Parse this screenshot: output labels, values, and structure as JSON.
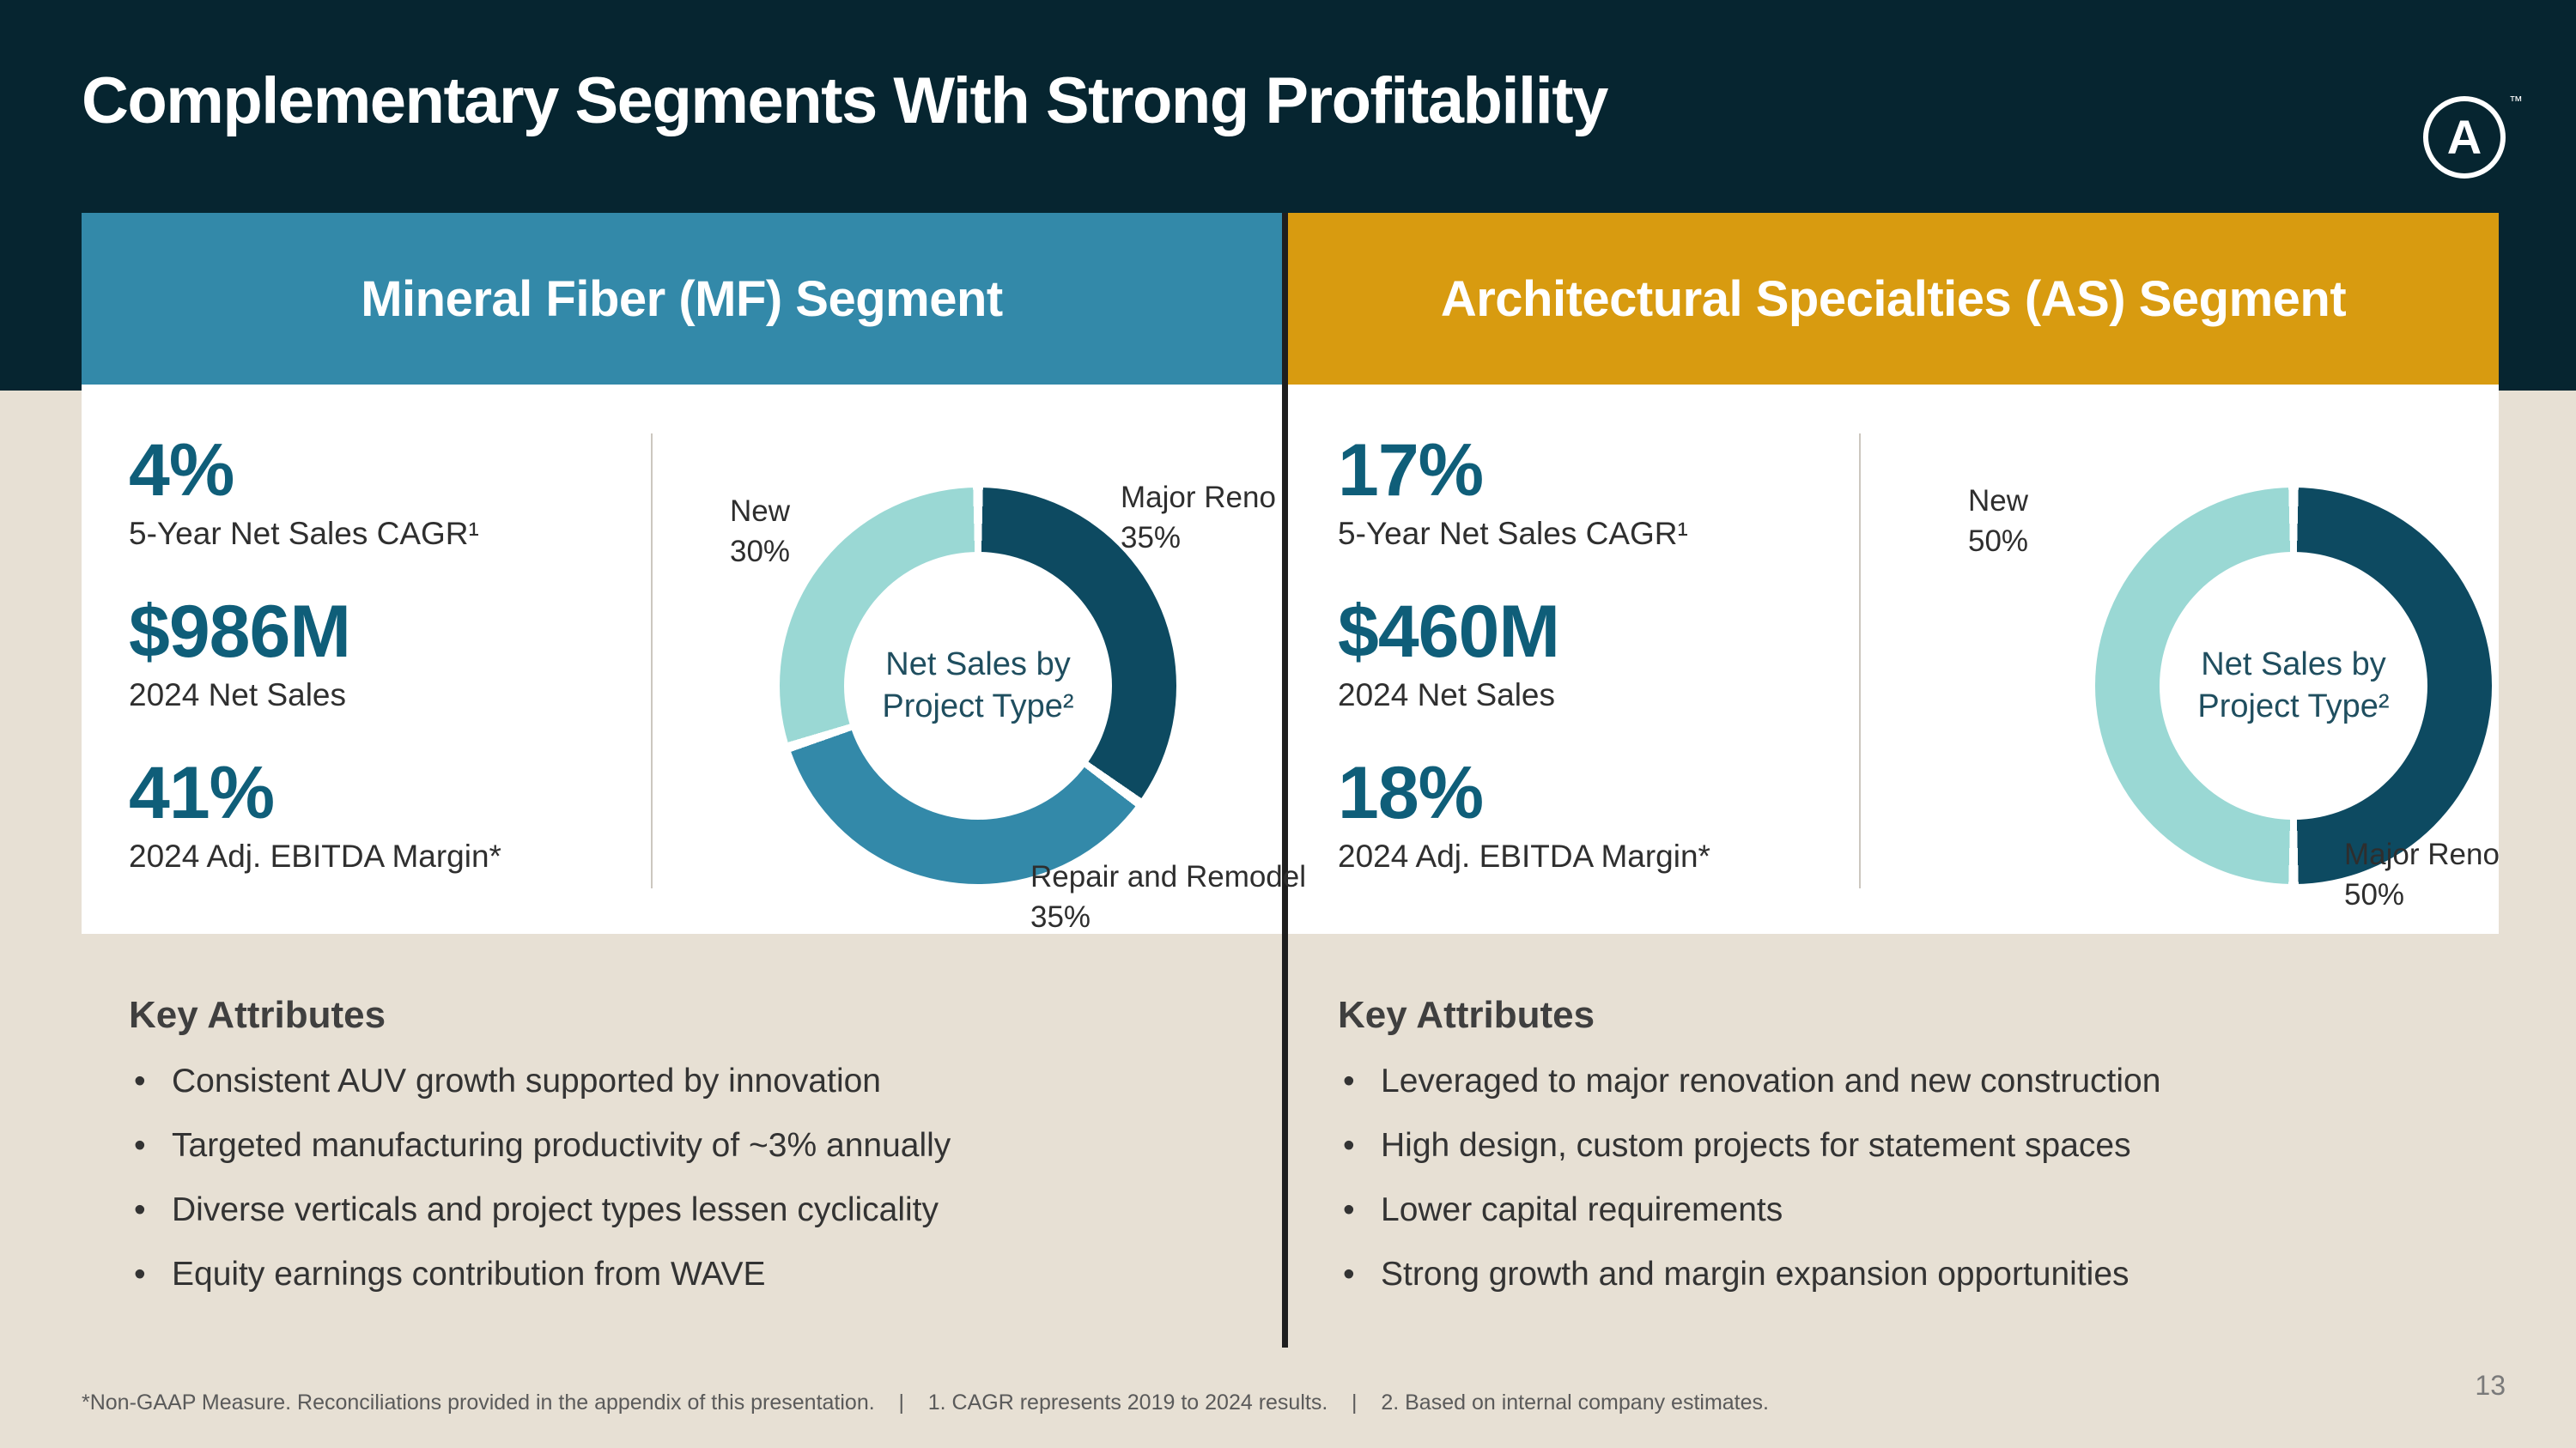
{
  "colors": {
    "navy": "#062530",
    "teal_bar": "#3389A9",
    "gold_bar": "#D89B10",
    "stat_teal": "#0F5E79",
    "beige": "#E7E0D4"
  },
  "header": {
    "title": "Complementary Segments With Strong Profitability",
    "logo_letter": "A",
    "logo_tm": "™"
  },
  "segments": [
    {
      "name": "Mineral Fiber (MF) Segment",
      "stats": [
        {
          "value": "4%",
          "label": "5-Year Net Sales CAGR¹"
        },
        {
          "value": "$986M",
          "label": "2024 Net Sales"
        },
        {
          "value": "41%",
          "label": "2024 Adj. EBITDA Margin*"
        }
      ],
      "key_attributes": {
        "heading": "Key Attributes",
        "bullets": [
          "Consistent AUV growth supported by innovation",
          "Targeted manufacturing productivity of ~3% annually",
          "Diverse verticals and project types lessen cyclicality",
          "Equity earnings contribution from WAVE"
        ]
      }
    },
    {
      "name": "Architectural Specialties (AS) Segment",
      "stats": [
        {
          "value": "17%",
          "label": "5-Year Net Sales CAGR¹"
        },
        {
          "value": "$460M",
          "label": "2024 Net Sales"
        },
        {
          "value": "18%",
          "label": "2024 Adj. EBITDA Margin*"
        }
      ],
      "key_attributes": {
        "heading": "Key Attributes",
        "bullets": [
          "Leveraged to major renovation and new construction",
          "High design, custom projects for statement spaces",
          "Lower capital requirements",
          "Strong growth and margin expansion opportunities"
        ]
      }
    }
  ],
  "chart_data": [
    {
      "type": "pie",
      "segment": "Mineral Fiber (MF)",
      "title": "Net Sales by Project Type²",
      "slices": [
        {
          "label": "Major Reno",
          "value": 35,
          "pct": "35%",
          "color": "#0D4A61"
        },
        {
          "label": "Repair and Remodel",
          "value": 35,
          "pct": "35%",
          "color": "#3389A9"
        },
        {
          "label": "New",
          "value": 30,
          "pct": "30%",
          "color": "#9AD8D4"
        }
      ],
      "gap_percent": 0.4
    },
    {
      "type": "pie",
      "segment": "Architectural Specialties (AS)",
      "title": "Net Sales by Project Type²",
      "slices": [
        {
          "label": "Major Reno",
          "value": 50,
          "pct": "50%",
          "color": "#0D4A61"
        },
        {
          "label": "New",
          "value": 50,
          "pct": "50%",
          "color": "#9AD8D4"
        }
      ],
      "gap_percent": 0.4
    }
  ],
  "footer": {
    "footnote": "*Non-GAAP Measure. Reconciliations provided in the appendix of this presentation.    |    1. CAGR represents 2019 to 2024 results.    |    2. Based on internal company estimates.",
    "page_number": "13"
  }
}
